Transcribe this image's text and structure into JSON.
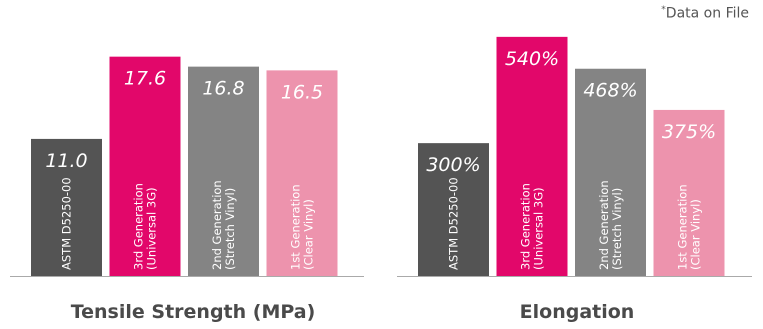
{
  "footnote": {
    "marker": "*",
    "text": "Data on File"
  },
  "colors": {
    "astm": "#545454",
    "third": "#e2076a",
    "second": "#848484",
    "first": "#ed93ad",
    "axis": "#aaaaaa",
    "title": "#4a4a4a"
  },
  "chart_data": [
    {
      "type": "bar",
      "title": "Tensile Strength (MPa)",
      "categories": [
        "ASTM D5250-00",
        "3rd Generation (Universal 3G)",
        "2nd Generation (Stretch Vinyl)",
        "1st Generation (Clear Vinyl)"
      ],
      "category_lines": [
        [
          "ASTM D5250-00"
        ],
        [
          "3rd Generation",
          "(Universal 3G)"
        ],
        [
          "2nd Generation",
          "(Stretch Vinyl)"
        ],
        [
          "1st Generation",
          "(Clear Vinyl)"
        ]
      ],
      "values": [
        11.0,
        17.6,
        16.8,
        16.5
      ],
      "data_labels": [
        "11.0",
        "17.6",
        "16.8",
        "16.5"
      ],
      "bar_colors": [
        "#545454",
        "#e2076a",
        "#848484",
        "#ed93ad"
      ],
      "ylim": [
        0,
        19.9
      ],
      "grid": false,
      "legend": "none"
    },
    {
      "type": "bar",
      "title": "Elongation",
      "categories": [
        "ASTM D5250-00",
        "3rd Generation (Universal 3G)",
        "2nd Generation (Stretch Vinyl)",
        "1st Generation (Clear Vinyl)"
      ],
      "category_lines": [
        [
          "ASTM D5250-00"
        ],
        [
          "3rd Generation",
          "(Universal 3G)"
        ],
        [
          "2nd Generation",
          "(Stretch Vinyl)"
        ],
        [
          "1st Generation",
          "(Clear Vinyl)"
        ]
      ],
      "values": [
        300,
        540,
        468,
        375
      ],
      "data_labels": [
        "300%",
        "540%",
        "468%",
        "375%"
      ],
      "bar_colors": [
        "#545454",
        "#e2076a",
        "#848484",
        "#ed93ad"
      ],
      "ylim": [
        0,
        560
      ],
      "grid": false,
      "legend": "none"
    }
  ]
}
